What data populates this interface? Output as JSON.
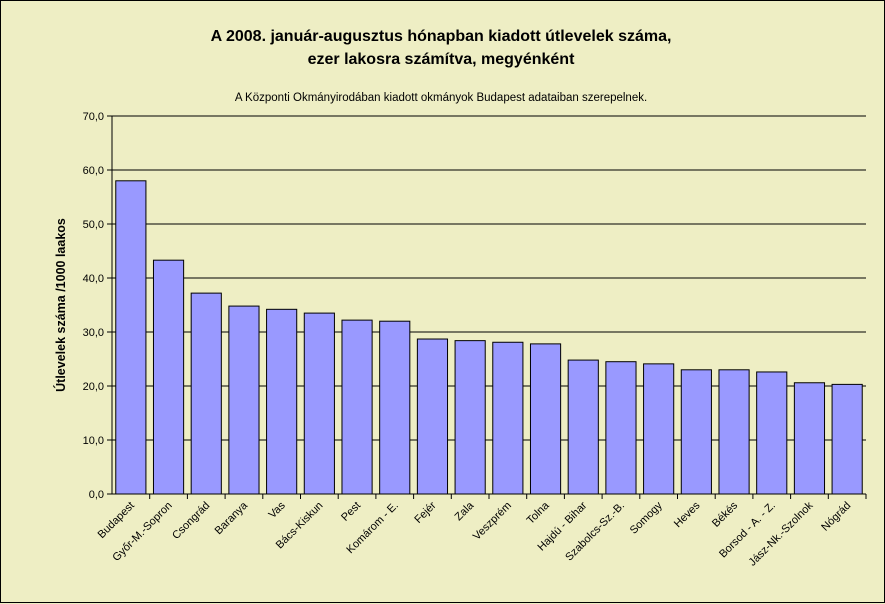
{
  "chart_data": {
    "type": "bar",
    "title_lines": [
      "A 2008. január-augusztus hónapban kiadott útlevelek száma,",
      "ezer lakosra számítva, megyénként"
    ],
    "subtitle": "A Központi Okmányirodában kiadott okmányok Budapest adataiban szerepelnek.",
    "xlabel": "",
    "ylabel": "Útlevelek száma /1000 laakos",
    "ylim": [
      0,
      70
    ],
    "y_ticks": [
      "0,0",
      "10,0",
      "20,0",
      "30,0",
      "40,0",
      "50,0",
      "60,0",
      "70,0"
    ],
    "grid": true,
    "bar_color": "#9999ff",
    "categories": [
      "Budapest",
      "Győr-M.-Sopron",
      "Csongrád",
      "Baranya",
      "Vas",
      "Bács-Kiskun",
      "Pest",
      "Komárom - E.",
      "Fejér",
      "Zala",
      "Veszprém",
      "Tolna",
      "Hajdú - Bihar",
      "Szabolcs-Sz.-B.",
      "Somogy",
      "Heves",
      "Békés",
      "Borsod - A. - Z.",
      "Jász-Nk.-Szolnok",
      "Nógrád"
    ],
    "values": [
      58.0,
      43.3,
      37.2,
      34.8,
      34.2,
      33.5,
      32.2,
      32.0,
      28.7,
      28.4,
      28.1,
      27.8,
      24.8,
      24.5,
      24.1,
      23.0,
      23.0,
      22.6,
      20.6,
      20.3
    ]
  }
}
